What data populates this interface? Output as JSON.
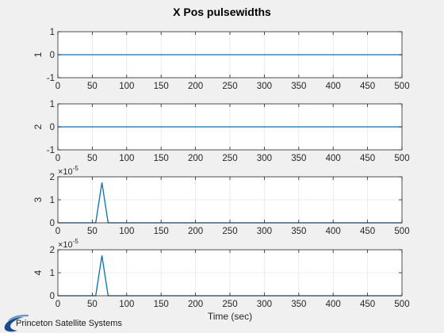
{
  "figure": {
    "title": "X Pos pulsewidths",
    "xlabel": "Time (sec)",
    "logo_text": "Princeton Satellite Systems",
    "logo_icon": "swoosh-logo-icon",
    "colors": {
      "background": "#f0f0f0",
      "axes_bg": "#ffffff",
      "line": "#0072bd",
      "grid": "#e6e6e6",
      "axis": "#262626",
      "logo": "#1a4b8c"
    }
  },
  "chart_data": [
    {
      "type": "line",
      "ylabel": "1",
      "x": [
        0,
        500
      ],
      "y": [
        0,
        0
      ],
      "xlim": [
        0,
        500
      ],
      "ylim": [
        -1,
        1
      ],
      "xticks": [
        "0",
        "50",
        "100",
        "150",
        "200",
        "250",
        "300",
        "350",
        "400",
        "450",
        "500"
      ],
      "yticks": [
        "-1",
        "0",
        "1"
      ],
      "exponent_label": "",
      "grid": true
    },
    {
      "type": "line",
      "ylabel": "2",
      "x": [
        0,
        500
      ],
      "y": [
        0,
        0
      ],
      "xlim": [
        0,
        500
      ],
      "ylim": [
        -1,
        1
      ],
      "xticks": [
        "0",
        "50",
        "100",
        "150",
        "200",
        "250",
        "300",
        "350",
        "400",
        "450",
        "500"
      ],
      "yticks": [
        "-1",
        "0",
        "1"
      ],
      "exponent_label": "",
      "grid": true
    },
    {
      "type": "line",
      "ylabel": "3",
      "x": [
        0,
        55,
        64,
        73,
        500
      ],
      "y": [
        0,
        0,
        1.75e-05,
        0,
        0
      ],
      "xlim": [
        0,
        500
      ],
      "ylim": [
        0,
        2e-05
      ],
      "xticks": [
        "0",
        "50",
        "100",
        "150",
        "200",
        "250",
        "300",
        "350",
        "400",
        "450",
        "500"
      ],
      "yticks": [
        "0",
        "1",
        "2"
      ],
      "exponent_label": "×10",
      "exponent_power": "-5",
      "grid": true
    },
    {
      "type": "line",
      "ylabel": "4",
      "x": [
        0,
        55,
        64,
        73,
        500
      ],
      "y": [
        0,
        0,
        1.75e-05,
        0,
        0
      ],
      "xlim": [
        0,
        500
      ],
      "ylim": [
        0,
        2e-05
      ],
      "xticks": [
        "0",
        "50",
        "100",
        "150",
        "200",
        "250",
        "300",
        "350",
        "400",
        "450",
        "500"
      ],
      "yticks": [
        "0",
        "1",
        "2"
      ],
      "exponent_label": "×10",
      "exponent_power": "-5",
      "grid": true
    }
  ]
}
